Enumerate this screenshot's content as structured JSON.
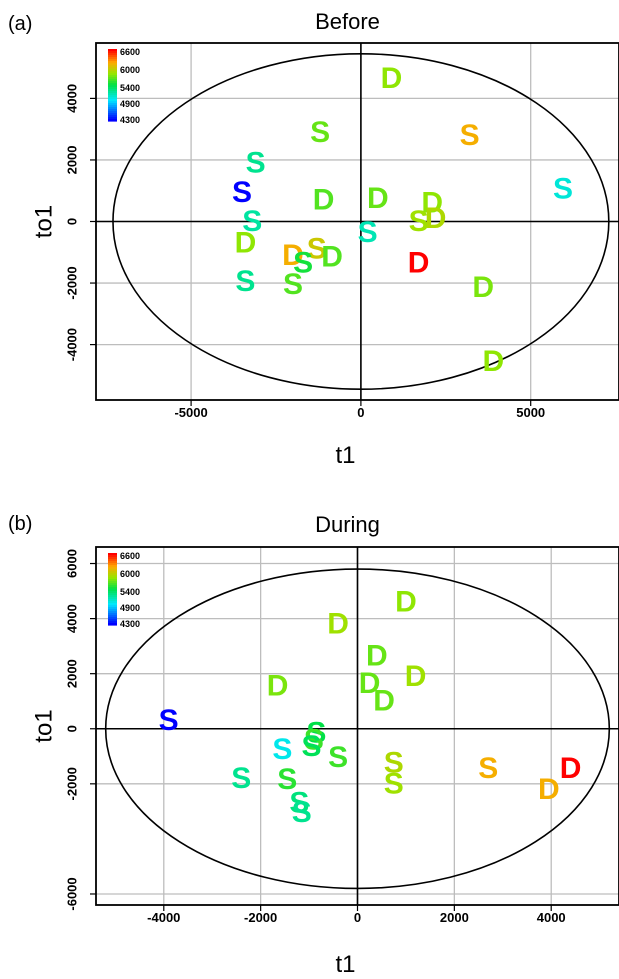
{
  "chart_data": [
    {
      "type": "scatter",
      "panel": "(a)",
      "title": "Before",
      "xlabel": "t1",
      "ylabel": "to1",
      "xlim": [
        -7800,
        7600
      ],
      "ylim": [
        -5800,
        5800
      ],
      "xticks": [
        -5000,
        0,
        5000
      ],
      "yticks": [
        -4000,
        -2000,
        0,
        2000,
        4000
      ],
      "grid": true,
      "legend": {
        "placement": "top-left",
        "labels": [
          "6600",
          "6000",
          "5400",
          "4900",
          "4300"
        ],
        "min": 4300,
        "max": 6600
      },
      "ellipse": {
        "cx": 0,
        "cy": 0,
        "rx": 7300,
        "ry": 5450
      },
      "points": [
        {
          "label": "D",
          "x": 900,
          "y": 4650,
          "value": 5800
        },
        {
          "label": "S",
          "x": 3200,
          "y": 2800,
          "value": 6150
        },
        {
          "label": "S",
          "x": -1200,
          "y": 2900,
          "value": 5700
        },
        {
          "label": "S",
          "x": -3100,
          "y": 1900,
          "value": 5250
        },
        {
          "label": "S",
          "x": 5950,
          "y": 1050,
          "value": 5050
        },
        {
          "label": "S",
          "x": -3500,
          "y": 950,
          "value": 4300
        },
        {
          "label": "D",
          "x": -1100,
          "y": 700,
          "value": 5650
        },
        {
          "label": "D",
          "x": 500,
          "y": 750,
          "value": 5700
        },
        {
          "label": "D",
          "x": 2100,
          "y": 600,
          "value": 5800
        },
        {
          "label": "S",
          "x": -3200,
          "y": 0,
          "value": 5200
        },
        {
          "label": "S",
          "x": 1700,
          "y": 0,
          "value": 5850
        },
        {
          "label": "D",
          "x": 2200,
          "y": 100,
          "value": 5900
        },
        {
          "label": "S",
          "x": 200,
          "y": -350,
          "value": 5150
        },
        {
          "label": "D",
          "x": -3400,
          "y": -700,
          "value": 5800
        },
        {
          "label": "S",
          "x": -1300,
          "y": -900,
          "value": 6000
        },
        {
          "label": "D",
          "x": -2000,
          "y": -1100,
          "value": 6150
        },
        {
          "label": "D",
          "x": -850,
          "y": -1150,
          "value": 5650
        },
        {
          "label": "S",
          "x": -1700,
          "y": -1350,
          "value": 5500
        },
        {
          "label": "D",
          "x": 1700,
          "y": -1350,
          "value": 6600
        },
        {
          "label": "S",
          "x": -3400,
          "y": -1950,
          "value": 5250
        },
        {
          "label": "S",
          "x": -2000,
          "y": -2050,
          "value": 5650
        },
        {
          "label": "D",
          "x": 3600,
          "y": -2150,
          "value": 5750
        },
        {
          "label": "D",
          "x": 3900,
          "y": -4550,
          "value": 5800
        }
      ]
    },
    {
      "type": "scatter",
      "panel": "(b)",
      "title": "During",
      "xlabel": "t1",
      "ylabel": "to1",
      "xlim": [
        -5400,
        5400
      ],
      "ylim": [
        -6400,
        6600
      ],
      "xticks": [
        -4000,
        -2000,
        0,
        2000,
        4000
      ],
      "yticks": [
        -6000,
        -2000,
        0,
        2000,
        4000,
        6000
      ],
      "grid": true,
      "legend": {
        "placement": "top-left",
        "labels": [
          "6600",
          "6000",
          "5400",
          "4900",
          "4300"
        ],
        "min": 4300,
        "max": 6600
      },
      "ellipse": {
        "cx": 0,
        "cy": 0,
        "rx": 5200,
        "ry": 5800
      },
      "points": [
        {
          "label": "D",
          "x": 1000,
          "y": 4600,
          "value": 5800
        },
        {
          "label": "D",
          "x": -400,
          "y": 3800,
          "value": 5850
        },
        {
          "label": "D",
          "x": 400,
          "y": 2650,
          "value": 5700
        },
        {
          "label": "D",
          "x": 1200,
          "y": 1900,
          "value": 5850
        },
        {
          "label": "D",
          "x": -1650,
          "y": 1550,
          "value": 5750
        },
        {
          "label": "D",
          "x": 250,
          "y": 1650,
          "value": 5700
        },
        {
          "label": "D",
          "x": 550,
          "y": 1000,
          "value": 5700
        },
        {
          "label": "S",
          "x": -3900,
          "y": 300,
          "value": 4300
        },
        {
          "label": "S",
          "x": -850,
          "y": -150,
          "value": 5450
        },
        {
          "label": "S",
          "x": -900,
          "y": -400,
          "value": 5600
        },
        {
          "label": "S",
          "x": -950,
          "y": -650,
          "value": 5400
        },
        {
          "label": "S",
          "x": -1550,
          "y": -750,
          "value": 5000
        },
        {
          "label": "S",
          "x": -400,
          "y": -1050,
          "value": 5600
        },
        {
          "label": "S",
          "x": 750,
          "y": -1250,
          "value": 5900
        },
        {
          "label": "S",
          "x": 2700,
          "y": -1450,
          "value": 6150
        },
        {
          "label": "D",
          "x": 4400,
          "y": -1450,
          "value": 6600
        },
        {
          "label": "S",
          "x": -2400,
          "y": -1800,
          "value": 5250
        },
        {
          "label": "S",
          "x": -1450,
          "y": -1850,
          "value": 5550
        },
        {
          "label": "S",
          "x": 750,
          "y": -2000,
          "value": 5850
        },
        {
          "label": "D",
          "x": 3950,
          "y": -2200,
          "value": 6150
        },
        {
          "label": "S",
          "x": -1200,
          "y": -2700,
          "value": 5300
        },
        {
          "label": "S",
          "x": -1150,
          "y": -3050,
          "value": 5250
        }
      ]
    }
  ]
}
